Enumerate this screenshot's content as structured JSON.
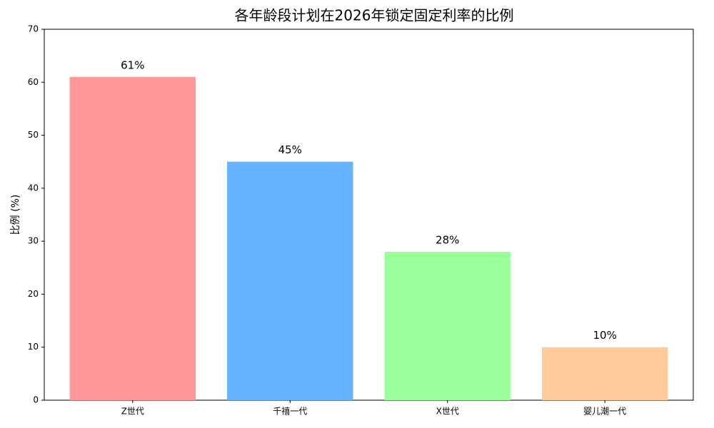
{
  "chart_data": {
    "type": "bar",
    "title": "各年龄段计划在2026年锁定固定利率的比例",
    "y_label": "比例 (%)",
    "categories": [
      "Z世代",
      "千禧一代",
      "X世代",
      "婴儿潮一代"
    ],
    "values": [
      61,
      45,
      28,
      10
    ],
    "value_labels": [
      "61%",
      "45%",
      "28%",
      "10%"
    ],
    "colors": [
      "#ff9999",
      "#66b3ff",
      "#99ff99",
      "#ffcc99"
    ],
    "ylim": [
      0,
      70
    ],
    "yticks": [
      0,
      10,
      20,
      30,
      40,
      50,
      60,
      70
    ],
    "grid": false
  }
}
